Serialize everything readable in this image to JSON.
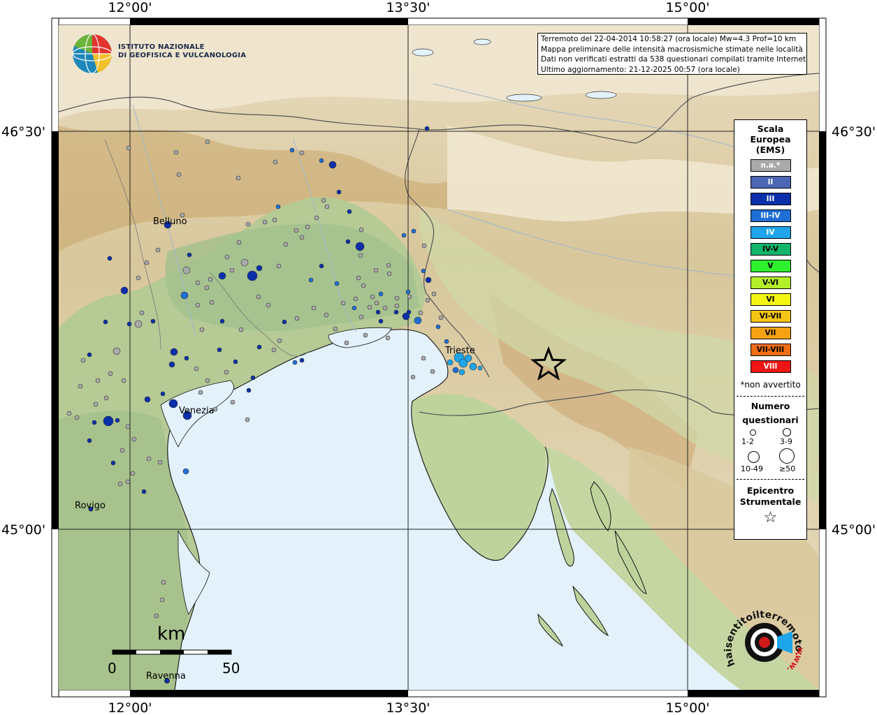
{
  "header": {
    "line1": "Terremoto del 22-04-2014 10:58:27 (ora locale) Mw=4.3 Prof=10 km",
    "line2": "Mappa preliminare delle intensità macrosismiche stimate nelle località",
    "line3": "Dati non verificati estratti da 538 questionari compilati tramite Internet.",
    "line4": "Ultimo aggiornamento: 21-12-2025 00:57 (ora locale)"
  },
  "logo": {
    "line1": "ISTITUTO NAZIONALE",
    "line2": "DI GEOFISICA E VULCANOLOGIA",
    "icon": "ingv-globe-logo"
  },
  "axes": {
    "top_labels": [
      "12°00'",
      "13°30'",
      "15°00'"
    ],
    "bottom_labels": [
      "12°00'",
      "13°30'",
      "15°00'"
    ],
    "left_labels": [
      "46°30'",
      "45°00'"
    ],
    "right_labels": [
      "46°30'",
      "45°00'"
    ]
  },
  "places": {
    "belluno": "Belluno",
    "venezia": "Venezia",
    "trieste": "Trieste",
    "rovigo": "Rovigo",
    "ravenna": "Ravenna"
  },
  "scalebar": {
    "unit": "km",
    "min": "0",
    "max": "50"
  },
  "legend": {
    "title": [
      "Scala",
      "Europea",
      "(EMS)"
    ],
    "items": [
      {
        "label": "n.a.*",
        "color": "#a9a9a9",
        "text": "#ffffff"
      },
      {
        "label": "II",
        "color": "#4a66b5",
        "text": "#ffffff"
      },
      {
        "label": "III",
        "color": "#0a2fa9",
        "text": "#ffffff"
      },
      {
        "label": "III-IV",
        "color": "#1f6fd6",
        "text": "#ffffff"
      },
      {
        "label": "IV",
        "color": "#1ea5ea",
        "text": "#ffffff"
      },
      {
        "label": "IV-V",
        "color": "#13b56a",
        "text": "#000000"
      },
      {
        "label": "V",
        "color": "#2ef02e",
        "text": "#000000"
      },
      {
        "label": "V-VI",
        "color": "#b4f02a",
        "text": "#000000"
      },
      {
        "label": "VI",
        "color": "#f5f514",
        "text": "#000000"
      },
      {
        "label": "VI-VII",
        "color": "#f5c414",
        "text": "#000000"
      },
      {
        "label": "VII",
        "color": "#f5a214",
        "text": "#000000"
      },
      {
        "label": "VII-VIII",
        "color": "#f06e14",
        "text": "#000000"
      },
      {
        "label": "VIII",
        "color": "#ee1515",
        "text": "#ffffff"
      }
    ],
    "note": "*non avvertito",
    "count_title": [
      "Numero",
      "questionari"
    ],
    "count_classes": [
      "1-2",
      "3-9",
      "10-49",
      "≥50"
    ],
    "epicenter_title": [
      "Epicentro",
      "Strumentale"
    ]
  },
  "site_logo": {
    "text1": "haisentitoilterremoto",
    "text2": ".it",
    "text3": "www.",
    "icon": "hst-speaker-logo"
  }
}
